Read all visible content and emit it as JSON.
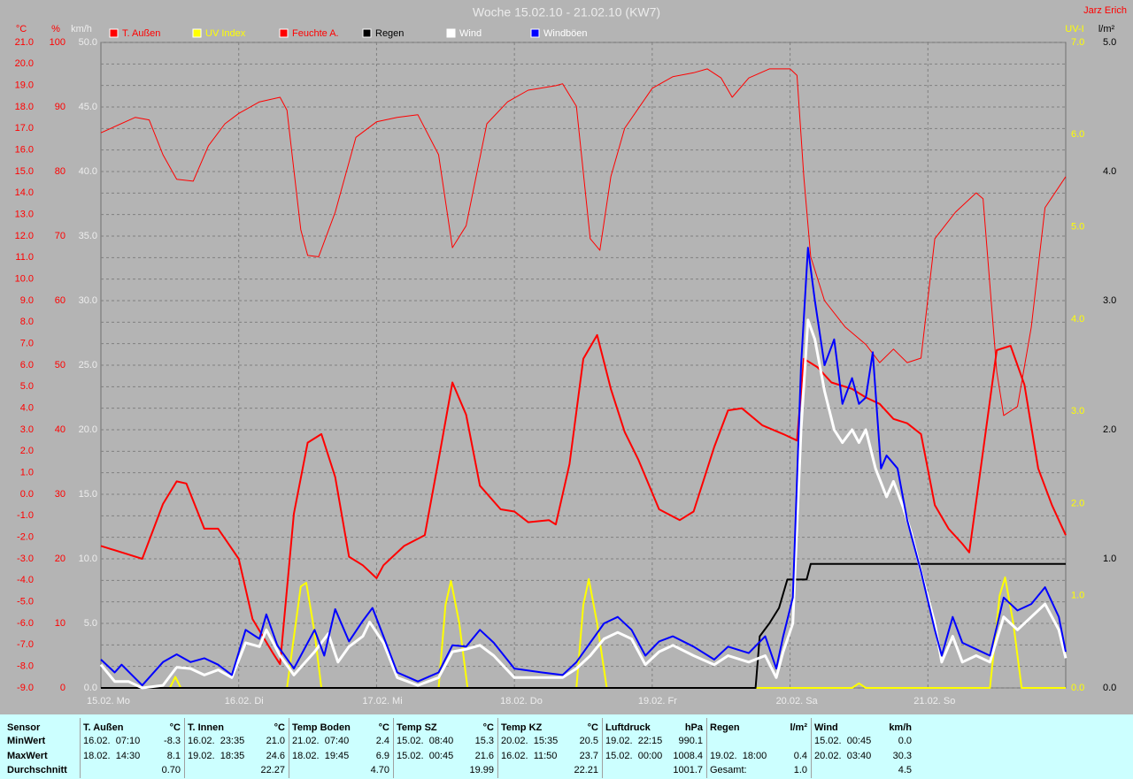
{
  "chart_data": {
    "type": "line",
    "title": "Woche 15.02.10 - 21.02.10 (KW7)",
    "author": "Jarz Erich",
    "xlim": [
      0,
      7
    ],
    "xticks": [
      {
        "value": 0,
        "label": "15.02. Mo"
      },
      {
        "value": 1,
        "label": "16.02. Di"
      },
      {
        "value": 2,
        "label": "17.02. Mi"
      },
      {
        "value": 3,
        "label": "18.02. Do"
      },
      {
        "value": 4,
        "label": "19.02. Fr"
      },
      {
        "value": 5,
        "label": "20.02. Sa"
      },
      {
        "value": 6,
        "label": "21.02. So"
      }
    ],
    "grid": true,
    "axes": {
      "temp": {
        "unit": "°C",
        "side": "left",
        "color": "#ff0000",
        "ylim": [
          -9,
          21
        ],
        "yticks": [
          {
            "value": -9,
            "label": "-9.0"
          },
          {
            "value": -8,
            "label": "-8.0"
          },
          {
            "value": -7,
            "label": "-7.0"
          },
          {
            "value": -6,
            "label": "-6.0"
          },
          {
            "value": -5,
            "label": "-5.0"
          },
          {
            "value": -4,
            "label": "-4.0"
          },
          {
            "value": -3,
            "label": "-3.0"
          },
          {
            "value": -2,
            "label": "-2.0"
          },
          {
            "value": -1,
            "label": "-1.0"
          },
          {
            "value": 0,
            "label": "0.0"
          },
          {
            "value": 1,
            "label": "1.0"
          },
          {
            "value": 2,
            "label": "2.0"
          },
          {
            "value": 3,
            "label": "3.0"
          },
          {
            "value": 4,
            "label": "4.0"
          },
          {
            "value": 5,
            "label": "5.0"
          },
          {
            "value": 6,
            "label": "6.0"
          },
          {
            "value": 7,
            "label": "7.0"
          },
          {
            "value": 8,
            "label": "8.0"
          },
          {
            "value": 9,
            "label": "9.0"
          },
          {
            "value": 10,
            "label": "10.0"
          },
          {
            "value": 11,
            "label": "11.0"
          },
          {
            "value": 12,
            "label": "12.0"
          },
          {
            "value": 13,
            "label": "13.0"
          },
          {
            "value": 14,
            "label": "14.0"
          },
          {
            "value": 15,
            "label": "15.0"
          },
          {
            "value": 16,
            "label": "16.0"
          },
          {
            "value": 17,
            "label": "17.0"
          },
          {
            "value": 18,
            "label": "18.0"
          },
          {
            "value": 19,
            "label": "19.0"
          },
          {
            "value": 20,
            "label": "20.0"
          },
          {
            "value": 21,
            "label": "21.0"
          }
        ],
        "grid": true
      },
      "hum": {
        "unit": "%",
        "side": "left",
        "color": "#ff0000",
        "ylim": [
          0,
          100
        ],
        "yticks": [
          0,
          10,
          20,
          30,
          40,
          50,
          60,
          70,
          80,
          90,
          100
        ]
      },
      "wind": {
        "unit": "km/h",
        "side": "left",
        "color": "#eeeeee",
        "ylim": [
          0,
          50
        ],
        "yticks": [
          {
            "value": 0,
            "label": "0.0"
          },
          {
            "value": 5,
            "label": "5.0"
          },
          {
            "value": 10,
            "label": "10.0"
          },
          {
            "value": 15,
            "label": "15.0"
          },
          {
            "value": 20,
            "label": "20.0"
          },
          {
            "value": 25,
            "label": "25.0"
          },
          {
            "value": 30,
            "label": "30.0"
          },
          {
            "value": 35,
            "label": "35.0"
          },
          {
            "value": 40,
            "label": "40.0"
          },
          {
            "value": 45,
            "label": "45.0"
          },
          {
            "value": 50,
            "label": "50.0"
          }
        ]
      },
      "uv": {
        "unit": "UV-I",
        "side": "right",
        "color": "#ffff00",
        "ylim": [
          0,
          7
        ],
        "yticks": [
          {
            "value": 0,
            "label": "0.0"
          },
          {
            "value": 1,
            "label": "1.0"
          },
          {
            "value": 2,
            "label": "2.0"
          },
          {
            "value": 3,
            "label": "3.0"
          },
          {
            "value": 4,
            "label": "4.0"
          },
          {
            "value": 5,
            "label": "5.0"
          },
          {
            "value": 6,
            "label": "6.0"
          },
          {
            "value": 7,
            "label": "7.0"
          }
        ]
      },
      "rain": {
        "unit": "l/m²",
        "side": "right",
        "color": "#000000",
        "ylim": [
          0,
          5
        ],
        "yticks": [
          {
            "value": 0,
            "label": "0.0"
          },
          {
            "value": 1,
            "label": "1.0"
          },
          {
            "value": 2,
            "label": "2.0"
          },
          {
            "value": 3,
            "label": "3.0"
          },
          {
            "value": 4,
            "label": "4.0"
          },
          {
            "value": 5,
            "label": "5.0"
          }
        ]
      }
    },
    "series": [
      {
        "name": "T. Außen",
        "color": "#ff0000",
        "legend_text_color": "#ff0000",
        "width": 2,
        "axis": "temp",
        "x": [
          0,
          0.2,
          0.3,
          0.45,
          0.55,
          0.62,
          0.75,
          0.85,
          1.0,
          1.1,
          1.25,
          1.3,
          1.4,
          1.5,
          1.6,
          1.7,
          1.8,
          1.9,
          2.0,
          2.05,
          2.2,
          2.35,
          2.45,
          2.55,
          2.65,
          2.75,
          2.9,
          3.0,
          3.1,
          3.25,
          3.3,
          3.4,
          3.5,
          3.6,
          3.7,
          3.8,
          3.9,
          4.05,
          4.2,
          4.3,
          4.45,
          4.55,
          4.65,
          4.8,
          4.95,
          5.05,
          5.1,
          5.2,
          5.3,
          5.45,
          5.55,
          5.65,
          5.75,
          5.85,
          5.95,
          6.05,
          6.15,
          6.25,
          6.3,
          6.4,
          6.5,
          6.6,
          6.7,
          6.8,
          6.9,
          7.0
        ],
        "values": [
          -2.4,
          -2.8,
          -3.0,
          -0.45,
          0.6,
          0.5,
          -1.6,
          -1.6,
          -3.0,
          -5.8,
          -7.4,
          -7.9,
          -0.9,
          2.4,
          2.8,
          0.8,
          -2.9,
          -3.3,
          -3.9,
          -3.3,
          -2.4,
          -1.9,
          1.6,
          5.2,
          3.7,
          0.4,
          -0.7,
          -0.8,
          -1.3,
          -1.2,
          -1.4,
          1.4,
          6.3,
          7.4,
          4.9,
          2.9,
          1.6,
          -0.7,
          -1.2,
          -0.8,
          2.2,
          3.9,
          4.0,
          3.2,
          2.8,
          2.5,
          6.3,
          5.9,
          5.2,
          4.9,
          4.5,
          4.2,
          3.5,
          3.3,
          2.8,
          -0.5,
          -1.6,
          -2.3,
          -2.7,
          2.0,
          6.7,
          6.9,
          5.1,
          1.2,
          -0.5,
          -1.9
        ]
      },
      {
        "name": "UV Index",
        "color": "#ffff00",
        "legend_text_color": "#ffff00",
        "width": 2,
        "axis": "uv",
        "x": [
          0,
          0.5,
          0.54,
          0.58,
          1.35,
          1.45,
          1.49,
          1.55,
          1.6,
          2.45,
          2.5,
          2.54,
          2.6,
          2.66,
          3.45,
          3.5,
          3.54,
          3.6,
          3.67,
          5.45,
          5.5,
          5.55,
          6.45,
          6.52,
          6.56,
          6.62,
          6.68,
          7.0
        ],
        "values": [
          0,
          0,
          0.12,
          0,
          0,
          1.1,
          1.14,
          0.6,
          0,
          0,
          0.9,
          1.16,
          0.7,
          0,
          0,
          0.9,
          1.18,
          0.7,
          0,
          0,
          0.05,
          0,
          0,
          1.0,
          1.2,
          0.7,
          0,
          0
        ]
      },
      {
        "name": "Feuchte A.",
        "color": "#ff0000",
        "legend_text_color": "#ff0000",
        "width": 1,
        "axis": "hum",
        "x": [
          0,
          0.25,
          0.35,
          0.45,
          0.55,
          0.67,
          0.78,
          0.9,
          1.0,
          1.15,
          1.3,
          1.35,
          1.45,
          1.5,
          1.58,
          1.7,
          1.85,
          2.0,
          2.15,
          2.3,
          2.45,
          2.55,
          2.65,
          2.8,
          2.95,
          3.1,
          3.3,
          3.35,
          3.45,
          3.55,
          3.62,
          3.7,
          3.8,
          4.0,
          4.15,
          4.3,
          4.4,
          4.5,
          4.58,
          4.7,
          4.85,
          5.0,
          5.05,
          5.1,
          5.15,
          5.25,
          5.4,
          5.55,
          5.65,
          5.75,
          5.85,
          5.95,
          6.05,
          6.2,
          6.35,
          6.4,
          6.5,
          6.55,
          6.65,
          6.75,
          6.85,
          7.0
        ],
        "values": [
          86,
          88.4,
          88,
          82.6,
          78.8,
          78.5,
          84,
          87.4,
          89,
          90.8,
          91.5,
          89.5,
          71,
          67,
          66.8,
          73.7,
          85.3,
          87.7,
          88.4,
          88.8,
          82.6,
          68.2,
          71.6,
          87.4,
          90.8,
          92.6,
          93.3,
          93.6,
          90.1,
          69.6,
          67.8,
          79.2,
          86.7,
          92.9,
          94.7,
          95.3,
          95.9,
          94.5,
          91.5,
          94.5,
          95.9,
          95.9,
          94.9,
          79.2,
          66.8,
          60,
          55.9,
          53.2,
          50.4,
          52.5,
          50.4,
          51.1,
          69.6,
          73.7,
          76.7,
          75.8,
          49,
          42.2,
          43.6,
          55.9,
          74.4,
          79.2
        ]
      },
      {
        "name": "Regen",
        "color": "#000000",
        "legend_text_color": "#000000",
        "width": 2,
        "axis": "rain",
        "x": [
          0,
          4.75,
          4.78,
          4.85,
          4.92,
          4.98,
          5.12,
          5.15,
          7.0
        ],
        "values": [
          0,
          0,
          0.4,
          0.5,
          0.62,
          0.84,
          0.84,
          0.96,
          0.96
        ]
      },
      {
        "name": "Wind",
        "color": "#ffffff",
        "legend_text_color": "#ffffff",
        "width": 3,
        "axis": "wind",
        "x": [
          0,
          0.1,
          0.2,
          0.3,
          0.45,
          0.55,
          0.65,
          0.75,
          0.85,
          0.95,
          1.05,
          1.15,
          1.2,
          1.3,
          1.4,
          1.55,
          1.65,
          1.72,
          1.8,
          1.9,
          1.95,
          2.05,
          2.15,
          2.3,
          2.45,
          2.55,
          2.65,
          2.75,
          2.85,
          3.0,
          3.2,
          3.35,
          3.45,
          3.55,
          3.65,
          3.75,
          3.85,
          3.95,
          4.05,
          4.15,
          4.3,
          4.45,
          4.55,
          4.7,
          4.82,
          4.9,
          4.95,
          5.02,
          5.08,
          5.13,
          5.18,
          5.25,
          5.32,
          5.38,
          5.45,
          5.5,
          5.55,
          5.62,
          5.7,
          5.75,
          5.82,
          5.88,
          5.95,
          6.05,
          6.1,
          6.18,
          6.25,
          6.35,
          6.45,
          6.55,
          6.65,
          6.75,
          6.85,
          6.95,
          7.0
        ],
        "values": [
          1.8,
          0.5,
          0.5,
          0,
          0.2,
          1.6,
          1.5,
          1.0,
          1.4,
          0.8,
          3.5,
          3.2,
          4.5,
          2.5,
          1.0,
          2.8,
          4.2,
          2.0,
          3.2,
          4.0,
          5.1,
          3.5,
          0.8,
          0.2,
          0.8,
          2.8,
          3.0,
          3.3,
          2.5,
          0.8,
          0.8,
          0.8,
          1.5,
          2.5,
          3.8,
          4.3,
          3.8,
          1.8,
          2.8,
          3.3,
          2.5,
          1.8,
          2.5,
          2.0,
          2.5,
          0.8,
          2.8,
          5.0,
          20,
          28.5,
          27,
          23,
          20,
          19,
          20,
          19,
          20,
          17,
          14.8,
          16,
          14,
          12,
          9,
          5,
          2,
          4,
          2,
          2.5,
          2,
          5.5,
          4.5,
          5.5,
          6.5,
          4.5,
          2.3
        ]
      },
      {
        "name": "Windböen",
        "color": "#0000ff",
        "legend_text_color": "#ffffff",
        "width": 2,
        "axis": "wind",
        "x": [
          0,
          0.1,
          0.15,
          0.3,
          0.45,
          0.55,
          0.65,
          0.75,
          0.85,
          0.95,
          1.05,
          1.15,
          1.2,
          1.28,
          1.4,
          1.55,
          1.62,
          1.7,
          1.8,
          1.9,
          1.97,
          2.05,
          2.15,
          2.3,
          2.45,
          2.55,
          2.65,
          2.75,
          2.85,
          3.0,
          3.2,
          3.35,
          3.45,
          3.55,
          3.65,
          3.75,
          3.85,
          3.95,
          4.05,
          4.15,
          4.3,
          4.45,
          4.55,
          4.7,
          4.82,
          4.9,
          4.95,
          5.02,
          5.08,
          5.13,
          5.18,
          5.25,
          5.32,
          5.38,
          5.45,
          5.5,
          5.55,
          5.6,
          5.66,
          5.7,
          5.78,
          5.85,
          5.95,
          6.05,
          6.1,
          6.18,
          6.25,
          6.35,
          6.45,
          6.55,
          6.65,
          6.75,
          6.85,
          6.95,
          7.0
        ],
        "values": [
          2.2,
          1.2,
          1.8,
          0.2,
          2.0,
          2.6,
          2.0,
          2.3,
          1.8,
          1.0,
          4.5,
          3.8,
          5.7,
          3.3,
          1.5,
          4.5,
          2.5,
          6.1,
          3.6,
          5.2,
          6.2,
          4.0,
          1.2,
          0.5,
          1.2,
          3.3,
          3.2,
          4.5,
          3.5,
          1.5,
          1.2,
          1.0,
          2.0,
          3.5,
          5.0,
          5.5,
          4.5,
          2.5,
          3.6,
          4.0,
          3.2,
          2.2,
          3.2,
          2.7,
          4.0,
          1.5,
          4.0,
          7.0,
          25,
          34.1,
          30,
          25,
          27,
          22,
          24,
          22,
          22.5,
          26.0,
          17,
          18,
          17,
          13,
          9,
          4.5,
          2.5,
          5.5,
          3.5,
          3.0,
          2.5,
          7.0,
          6.0,
          6.5,
          7.8,
          5.5,
          2.8
        ]
      }
    ]
  },
  "table": {
    "row_labels": [
      "Sensor",
      "MinWert",
      "MaxWert",
      "Durchschnitt"
    ],
    "columns": [
      {
        "name": "T. Außen",
        "unit": "°C",
        "rows": [
          [
            "16.02.  07:10",
            "-8.3"
          ],
          [
            "18.02.  14:30",
            "8.1"
          ],
          [
            null,
            "0.70"
          ]
        ]
      },
      {
        "name": "T. Innen",
        "unit": "°C",
        "rows": [
          [
            "16.02.  23:35",
            "21.0"
          ],
          [
            "19.02.  18:35",
            "24.6"
          ],
          [
            null,
            "22.27"
          ]
        ]
      },
      {
        "name": "Temp Boden",
        "unit": "°C",
        "rows": [
          [
            "21.02.  07:40",
            "2.4"
          ],
          [
            "18.02.  19:45",
            "6.9"
          ],
          [
            null,
            "4.70"
          ]
        ]
      },
      {
        "name": "Temp SZ",
        "unit": "°C",
        "rows": [
          [
            "15.02.  08:40",
            "15.3"
          ],
          [
            "15.02.  00:45",
            "21.6"
          ],
          [
            null,
            "19.99"
          ]
        ]
      },
      {
        "name": "Temp KZ",
        "unit": "°C",
        "rows": [
          [
            "20.02.  15:35",
            "20.5"
          ],
          [
            "16.02.  11:50",
            "23.7"
          ],
          [
            null,
            "22.21"
          ]
        ]
      },
      {
        "name": "Luftdruck",
        "unit": "hPa",
        "rows": [
          [
            "19.02.  22:15",
            "990.1"
          ],
          [
            "15.02.  00:00",
            "1008.4"
          ],
          [
            null,
            "1001.7"
          ]
        ]
      },
      {
        "name": "Regen",
        "unit": "l/m²",
        "rows": [
          [
            null,
            null
          ],
          [
            "19.02.  18:00",
            "0.4"
          ],
          [
            "Gesamt:",
            "1.0"
          ]
        ]
      },
      {
        "name": "Wind",
        "unit": "km/h",
        "rows": [
          [
            "15.02.  00:45",
            "0.0"
          ],
          [
            "20.02.  03:40",
            "30.3"
          ],
          [
            null,
            "4.5"
          ]
        ]
      }
    ]
  }
}
